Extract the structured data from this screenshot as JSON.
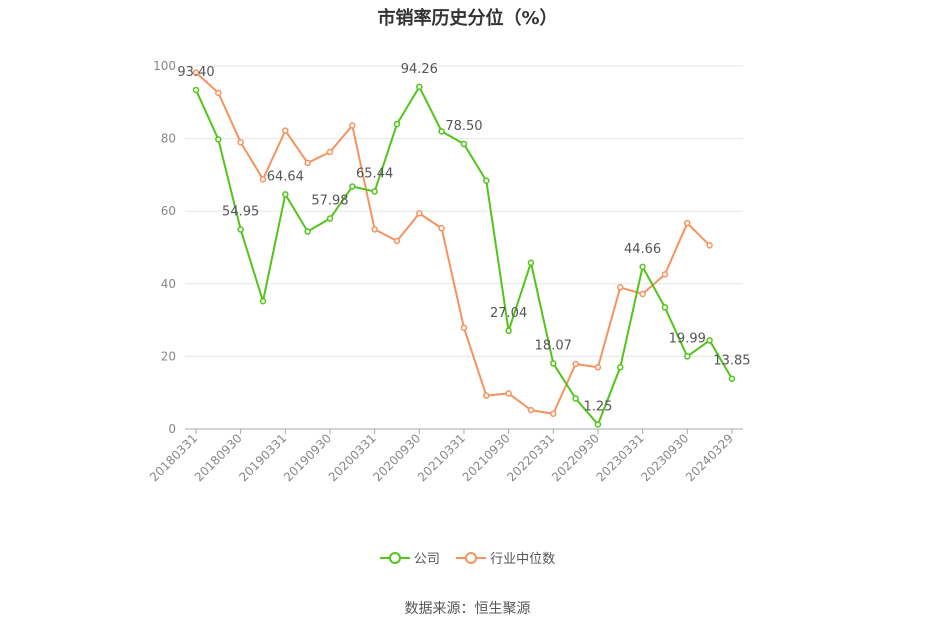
{
  "chart_data": {
    "type": "line",
    "title": "市销率历史分位（%）",
    "ylim": [
      0,
      100
    ],
    "y_ticks": [
      "0",
      "20",
      "40",
      "60",
      "80",
      "100"
    ],
    "x_tick_labels": [
      "20180331",
      "20180930",
      "20190331",
      "20190930",
      "20200331",
      "20200930",
      "20210331",
      "20210930",
      "20220331",
      "20220930",
      "20230331",
      "20230930",
      "20240329"
    ],
    "legend_position": "bottom",
    "grid": true,
    "series": [
      {
        "name": "公司",
        "color": "#52c41a",
        "values": [
          93.4,
          79.8,
          54.95,
          35.2,
          64.64,
          54.4,
          57.98,
          66.8,
          65.44,
          84.0,
          94.26,
          82.0,
          78.5,
          68.4,
          27.04,
          45.8,
          18.07,
          8.4,
          1.25,
          17.0,
          44.66,
          33.5,
          19.99,
          24.4,
          13.85
        ],
        "labels": {
          "0": "93.40",
          "2": "54.95",
          "4": "64.64",
          "6": "57.98",
          "8": "65.44",
          "10": "94.26",
          "12": "78.50",
          "14": "27.04",
          "16": "18.07",
          "18": "1.25",
          "20": "44.66",
          "22": "19.99",
          "24": "13.85"
        }
      },
      {
        "name": "行业中位数",
        "color": "#f5935f",
        "values": [
          98.2,
          92.6,
          79.0,
          68.8,
          82.2,
          73.3,
          76.3,
          83.6,
          55.0,
          51.8,
          59.4,
          55.3,
          27.9,
          9.2,
          9.8,
          5.2,
          4.2,
          17.9,
          17.0,
          39.0,
          37.2,
          42.6,
          56.7,
          50.6
        ]
      }
    ]
  },
  "legend": [
    {
      "label": "公司",
      "color": "#52c41a"
    },
    {
      "label": "行业中位数",
      "color": "#f5935f"
    }
  ],
  "source_text": "数据来源：恒生聚源"
}
